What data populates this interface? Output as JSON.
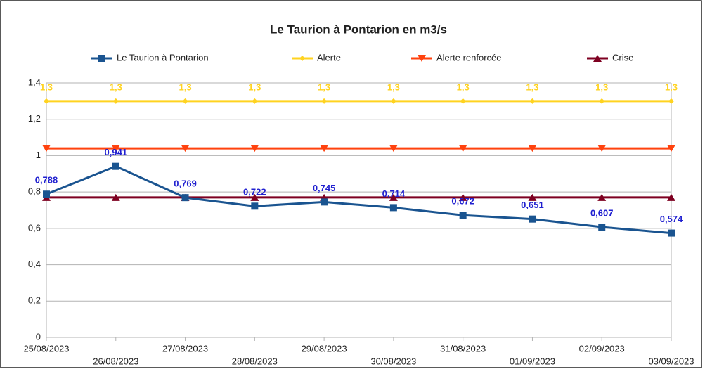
{
  "chart_data": {
    "type": "line",
    "title": "Le Taurion à Pontarion en m3/s",
    "categories": [
      "25/08/2023",
      "26/08/2023",
      "27/08/2023",
      "28/08/2023",
      "29/08/2023",
      "30/08/2023",
      "31/08/2023",
      "01/09/2023",
      "02/09/2023",
      "03/09/2023"
    ],
    "series": [
      {
        "name": "Le Taurion à Pontarion",
        "color": "#1a5490",
        "marker": "square",
        "values": [
          0.788,
          0.941,
          0.769,
          0.722,
          0.745,
          0.714,
          0.672,
          0.651,
          0.607,
          0.574
        ],
        "value_labels": [
          "0,788",
          "0,941",
          "0,769",
          "0,722",
          "0,745",
          "0,714",
          "0,672",
          "0,651",
          "0,607",
          "0,574"
        ]
      },
      {
        "name": "Alerte",
        "color": "#ffd320",
        "marker": "diamond",
        "values": [
          1.3,
          1.3,
          1.3,
          1.3,
          1.3,
          1.3,
          1.3,
          1.3,
          1.3,
          1.3
        ],
        "value_labels": [
          "1,3",
          "1,3",
          "1,3",
          "1,3",
          "1,3",
          "1,3",
          "1,3",
          "1,3",
          "1,3",
          "1,3"
        ]
      },
      {
        "name": "Alerte renforcée",
        "color": "#ff420e",
        "marker": "triangle-down",
        "values": [
          1.04,
          1.04,
          1.04,
          1.04,
          1.04,
          1.04,
          1.04,
          1.04,
          1.04,
          1.04
        ]
      },
      {
        "name": "Crise",
        "color": "#7e0021",
        "marker": "triangle-up",
        "values": [
          0.77,
          0.77,
          0.77,
          0.77,
          0.77,
          0.77,
          0.77,
          0.77,
          0.77,
          0.77
        ]
      }
    ],
    "ylim": [
      0,
      1.4
    ],
    "yticks": [
      0,
      {
        "value": 0.2,
        "label": "0,2"
      },
      {
        "value": 0.4,
        "label": "0,4"
      },
      {
        "value": 0.6,
        "label": "0,6"
      },
      {
        "value": 0.8,
        "label": "0,8"
      },
      1,
      {
        "value": 1.2,
        "label": "1,2"
      },
      {
        "value": 1.4,
        "label": "1,4"
      }
    ],
    "grid": true,
    "legend": "top"
  }
}
